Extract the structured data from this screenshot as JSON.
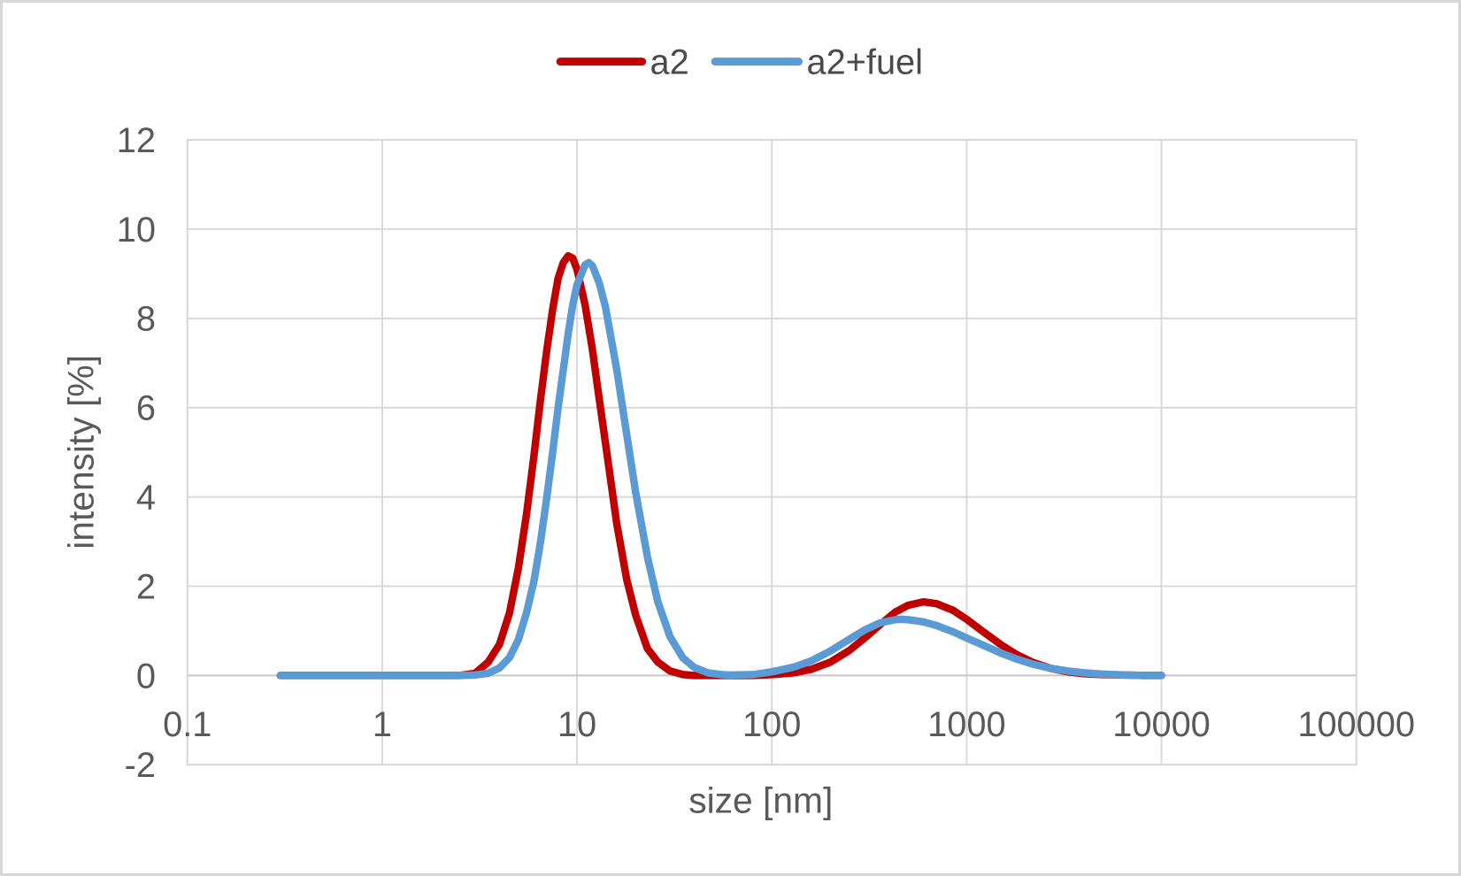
{
  "chart_data": {
    "type": "line",
    "title": "",
    "xlabel": "size [nm]",
    "ylabel": "intensity [%]",
    "x_scale": "log",
    "xlim": [
      0.1,
      100000
    ],
    "ylim": [
      -2,
      12
    ],
    "grid": true,
    "legend_position": "top-center",
    "gridline_color": "#d9d9d9",
    "zero_line_color": "#c6c6c6",
    "x_ticks": [
      {
        "label": "0.1",
        "value": 0.1
      },
      {
        "label": "1",
        "value": 1
      },
      {
        "label": "10",
        "value": 10
      },
      {
        "label": "100",
        "value": 100
      },
      {
        "label": "1000",
        "value": 1000
      },
      {
        "label": "10000",
        "value": 10000
      },
      {
        "label": "100000",
        "value": 100000
      }
    ],
    "y_ticks": [
      {
        "label": "12",
        "value": 12
      },
      {
        "label": "10",
        "value": 10
      },
      {
        "label": "8",
        "value": 8
      },
      {
        "label": "6",
        "value": 6
      },
      {
        "label": "4",
        "value": 4
      },
      {
        "label": "2",
        "value": 2
      },
      {
        "label": "0",
        "value": 0
      },
      {
        "label": "-2",
        "value": -2
      }
    ],
    "series": [
      {
        "name": "a2",
        "color": "#C00000",
        "points": [
          [
            0.3,
            0
          ],
          [
            0.4,
            0
          ],
          [
            0.5,
            0
          ],
          [
            0.7,
            0
          ],
          [
            1,
            0
          ],
          [
            1.5,
            0
          ],
          [
            2,
            0
          ],
          [
            2.5,
            0
          ],
          [
            3,
            0.05
          ],
          [
            3.5,
            0.3
          ],
          [
            4,
            0.7
          ],
          [
            4.5,
            1.4
          ],
          [
            5,
            2.4
          ],
          [
            5.5,
            3.6
          ],
          [
            6,
            4.9
          ],
          [
            6.5,
            6.2
          ],
          [
            7,
            7.3
          ],
          [
            7.5,
            8.2
          ],
          [
            8,
            8.9
          ],
          [
            8.5,
            9.25
          ],
          [
            9,
            9.4
          ],
          [
            9.5,
            9.35
          ],
          [
            10,
            9.1
          ],
          [
            11,
            8.3
          ],
          [
            12,
            7.3
          ],
          [
            13,
            6.2
          ],
          [
            14,
            5.2
          ],
          [
            16,
            3.4
          ],
          [
            18,
            2.15
          ],
          [
            20,
            1.35
          ],
          [
            23,
            0.6
          ],
          [
            26,
            0.3
          ],
          [
            30,
            0.1
          ],
          [
            35,
            0.02
          ],
          [
            40,
            0
          ],
          [
            50,
            0
          ],
          [
            60,
            0
          ],
          [
            80,
            0
          ],
          [
            100,
            0.02
          ],
          [
            130,
            0.06
          ],
          [
            160,
            0.14
          ],
          [
            200,
            0.3
          ],
          [
            250,
            0.56
          ],
          [
            300,
            0.84
          ],
          [
            360,
            1.14
          ],
          [
            430,
            1.42
          ],
          [
            500,
            1.57
          ],
          [
            600,
            1.65
          ],
          [
            700,
            1.61
          ],
          [
            850,
            1.46
          ],
          [
            1000,
            1.26
          ],
          [
            1200,
            1.0
          ],
          [
            1500,
            0.69
          ],
          [
            1800,
            0.47
          ],
          [
            2200,
            0.29
          ],
          [
            2700,
            0.16
          ],
          [
            3300,
            0.08
          ],
          [
            4000,
            0.04
          ],
          [
            5000,
            0.02
          ],
          [
            6500,
            0.01
          ],
          [
            8000,
            0
          ],
          [
            10000,
            0
          ]
        ]
      },
      {
        "name": "a2+fuel",
        "color": "#5B9BD5",
        "points": [
          [
            0.3,
            0
          ],
          [
            0.4,
            0
          ],
          [
            0.5,
            0
          ],
          [
            0.7,
            0
          ],
          [
            1,
            0
          ],
          [
            1.5,
            0
          ],
          [
            2,
            0
          ],
          [
            2.5,
            0
          ],
          [
            3,
            0.01
          ],
          [
            3.5,
            0.05
          ],
          [
            4,
            0.17
          ],
          [
            4.5,
            0.4
          ],
          [
            5,
            0.8
          ],
          [
            5.5,
            1.4
          ],
          [
            6,
            2.1
          ],
          [
            6.5,
            3.0
          ],
          [
            7,
            4.0
          ],
          [
            7.5,
            5.0
          ],
          [
            8,
            6.0
          ],
          [
            8.5,
            6.85
          ],
          [
            9,
            7.65
          ],
          [
            9.5,
            8.3
          ],
          [
            10,
            8.75
          ],
          [
            11,
            9.2
          ],
          [
            11.5,
            9.25
          ],
          [
            12,
            9.18
          ],
          [
            13,
            8.8
          ],
          [
            14,
            8.25
          ],
          [
            16,
            6.85
          ],
          [
            18,
            5.4
          ],
          [
            20,
            4.1
          ],
          [
            23,
            2.65
          ],
          [
            26,
            1.65
          ],
          [
            30,
            0.87
          ],
          [
            35,
            0.39
          ],
          [
            40,
            0.18
          ],
          [
            47,
            0.06
          ],
          [
            55,
            0.02
          ],
          [
            60,
            0.01
          ],
          [
            80,
            0.02
          ],
          [
            100,
            0.08
          ],
          [
            130,
            0.19
          ],
          [
            160,
            0.33
          ],
          [
            200,
            0.55
          ],
          [
            250,
            0.81
          ],
          [
            300,
            1.02
          ],
          [
            360,
            1.18
          ],
          [
            430,
            1.25
          ],
          [
            460,
            1.26
          ],
          [
            500,
            1.25
          ],
          [
            600,
            1.2
          ],
          [
            700,
            1.12
          ],
          [
            850,
            0.98
          ],
          [
            1000,
            0.84
          ],
          [
            1200,
            0.69
          ],
          [
            1500,
            0.5
          ],
          [
            1800,
            0.37
          ],
          [
            2200,
            0.25
          ],
          [
            2700,
            0.16
          ],
          [
            3300,
            0.1
          ],
          [
            4000,
            0.06
          ],
          [
            5000,
            0.03
          ],
          [
            6500,
            0.01
          ],
          [
            8000,
            0
          ],
          [
            10000,
            0
          ]
        ]
      }
    ]
  }
}
